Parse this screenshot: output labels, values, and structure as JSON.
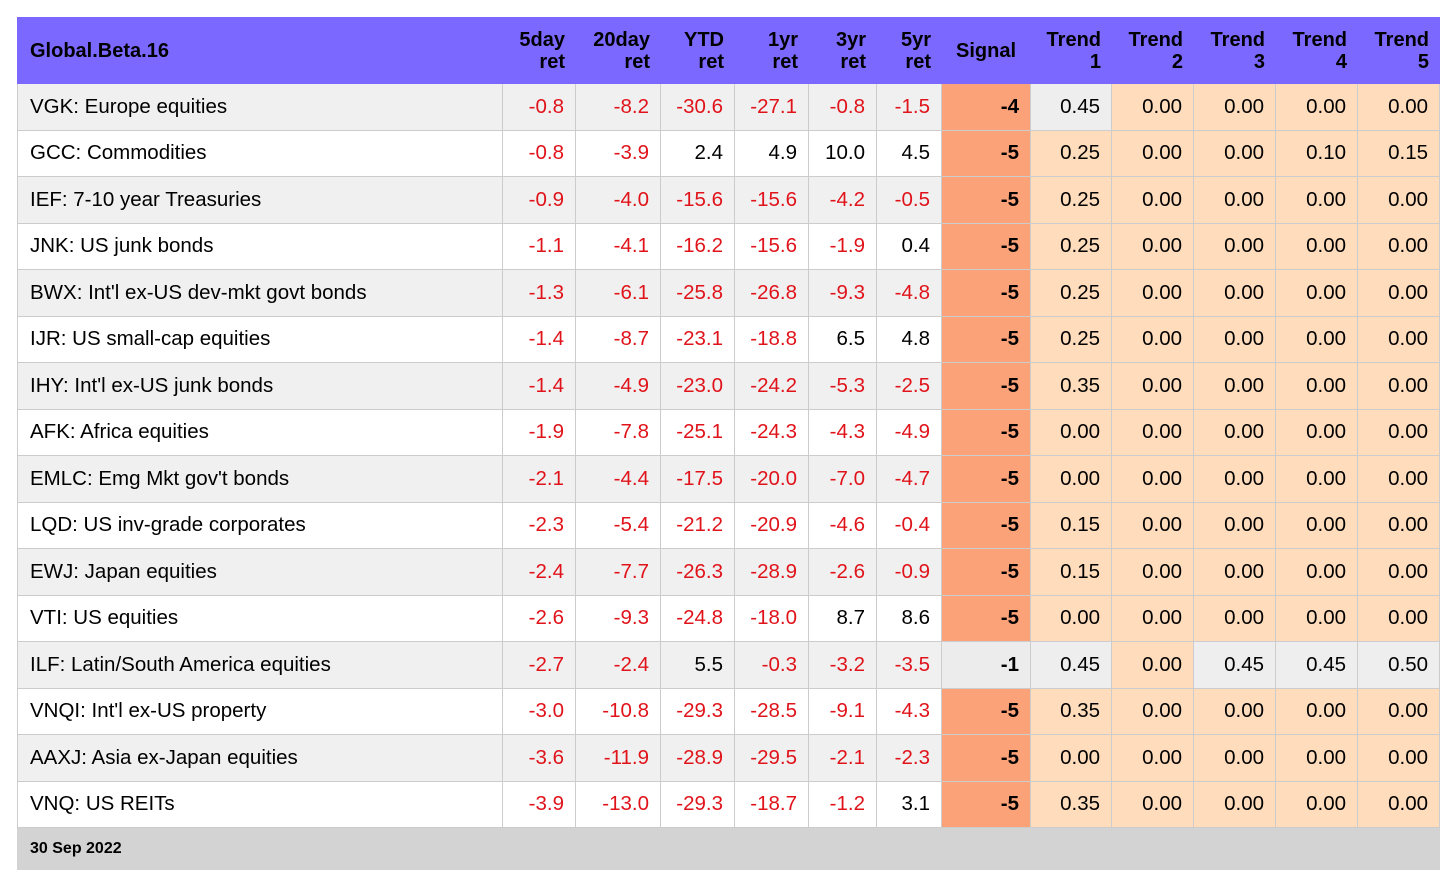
{
  "table": {
    "title": "Global.Beta.16",
    "headers": [
      {
        "line1": "5day",
        "line2": "ret"
      },
      {
        "line1": "20day",
        "line2": "ret"
      },
      {
        "line1": "YTD",
        "line2": "ret"
      },
      {
        "line1": "1yr",
        "line2": "ret"
      },
      {
        "line1": "3yr",
        "line2": "ret"
      },
      {
        "line1": "5yr",
        "line2": "ret"
      },
      {
        "line1": "Signal",
        "line2": ""
      },
      {
        "line1": "Trend",
        "line2": "1"
      },
      {
        "line1": "Trend",
        "line2": "2"
      },
      {
        "line1": "Trend",
        "line2": "3"
      },
      {
        "line1": "Trend",
        "line2": "4"
      },
      {
        "line1": "Trend",
        "line2": "5"
      }
    ],
    "rows": [
      {
        "name": "VGK: Europe equities",
        "ret5d": "-0.8",
        "ret20d": "-8.2",
        "ytd": "-30.6",
        "ret1y": "-27.1",
        "ret3y": "-0.8",
        "ret5y": "-1.5",
        "signal": "-4",
        "trend1": "0.45",
        "trend2": "0.00",
        "trend3": "0.00",
        "trend4": "0.00",
        "trend5": "0.00"
      },
      {
        "name": "GCC: Commodities",
        "ret5d": "-0.8",
        "ret20d": "-3.9",
        "ytd": "2.4",
        "ret1y": "4.9",
        "ret3y": "10.0",
        "ret5y": "4.5",
        "signal": "-5",
        "trend1": "0.25",
        "trend2": "0.00",
        "trend3": "0.00",
        "trend4": "0.10",
        "trend5": "0.15"
      },
      {
        "name": "IEF: 7-10 year Treasuries",
        "ret5d": "-0.9",
        "ret20d": "-4.0",
        "ytd": "-15.6",
        "ret1y": "-15.6",
        "ret3y": "-4.2",
        "ret5y": "-0.5",
        "signal": "-5",
        "trend1": "0.25",
        "trend2": "0.00",
        "trend3": "0.00",
        "trend4": "0.00",
        "trend5": "0.00"
      },
      {
        "name": "JNK: US junk bonds",
        "ret5d": "-1.1",
        "ret20d": "-4.1",
        "ytd": "-16.2",
        "ret1y": "-15.6",
        "ret3y": "-1.9",
        "ret5y": "0.4",
        "signal": "-5",
        "trend1": "0.25",
        "trend2": "0.00",
        "trend3": "0.00",
        "trend4": "0.00",
        "trend5": "0.00"
      },
      {
        "name": "BWX: Int'l ex-US dev-mkt govt bonds",
        "ret5d": "-1.3",
        "ret20d": "-6.1",
        "ytd": "-25.8",
        "ret1y": "-26.8",
        "ret3y": "-9.3",
        "ret5y": "-4.8",
        "signal": "-5",
        "trend1": "0.25",
        "trend2": "0.00",
        "trend3": "0.00",
        "trend4": "0.00",
        "trend5": "0.00"
      },
      {
        "name": "IJR: US small-cap equities",
        "ret5d": "-1.4",
        "ret20d": "-8.7",
        "ytd": "-23.1",
        "ret1y": "-18.8",
        "ret3y": "6.5",
        "ret5y": "4.8",
        "signal": "-5",
        "trend1": "0.25",
        "trend2": "0.00",
        "trend3": "0.00",
        "trend4": "0.00",
        "trend5": "0.00"
      },
      {
        "name": "IHY: Int'l ex-US junk bonds",
        "ret5d": "-1.4",
        "ret20d": "-4.9",
        "ytd": "-23.0",
        "ret1y": "-24.2",
        "ret3y": "-5.3",
        "ret5y": "-2.5",
        "signal": "-5",
        "trend1": "0.35",
        "trend2": "0.00",
        "trend3": "0.00",
        "trend4": "0.00",
        "trend5": "0.00"
      },
      {
        "name": "AFK: Africa equities",
        "ret5d": "-1.9",
        "ret20d": "-7.8",
        "ytd": "-25.1",
        "ret1y": "-24.3",
        "ret3y": "-4.3",
        "ret5y": "-4.9",
        "signal": "-5",
        "trend1": "0.00",
        "trend2": "0.00",
        "trend3": "0.00",
        "trend4": "0.00",
        "trend5": "0.00"
      },
      {
        "name": "EMLC: Emg Mkt gov't bonds",
        "ret5d": "-2.1",
        "ret20d": "-4.4",
        "ytd": "-17.5",
        "ret1y": "-20.0",
        "ret3y": "-7.0",
        "ret5y": "-4.7",
        "signal": "-5",
        "trend1": "0.00",
        "trend2": "0.00",
        "trend3": "0.00",
        "trend4": "0.00",
        "trend5": "0.00"
      },
      {
        "name": "LQD: US inv-grade corporates",
        "ret5d": "-2.3",
        "ret20d": "-5.4",
        "ytd": "-21.2",
        "ret1y": "-20.9",
        "ret3y": "-4.6",
        "ret5y": "-0.4",
        "signal": "-5",
        "trend1": "0.15",
        "trend2": "0.00",
        "trend3": "0.00",
        "trend4": "0.00",
        "trend5": "0.00"
      },
      {
        "name": "EWJ: Japan equities",
        "ret5d": "-2.4",
        "ret20d": "-7.7",
        "ytd": "-26.3",
        "ret1y": "-28.9",
        "ret3y": "-2.6",
        "ret5y": "-0.9",
        "signal": "-5",
        "trend1": "0.15",
        "trend2": "0.00",
        "trend3": "0.00",
        "trend4": "0.00",
        "trend5": "0.00"
      },
      {
        "name": "VTI: US equities",
        "ret5d": "-2.6",
        "ret20d": "-9.3",
        "ytd": "-24.8",
        "ret1y": "-18.0",
        "ret3y": "8.7",
        "ret5y": "8.6",
        "signal": "-5",
        "trend1": "0.00",
        "trend2": "0.00",
        "trend3": "0.00",
        "trend4": "0.00",
        "trend5": "0.00"
      },
      {
        "name": "ILF: Latin/South America equities",
        "ret5d": "-2.7",
        "ret20d": "-2.4",
        "ytd": "5.5",
        "ret1y": "-0.3",
        "ret3y": "-3.2",
        "ret5y": "-3.5",
        "signal": "-1",
        "trend1": "0.45",
        "trend2": "0.00",
        "trend3": "0.45",
        "trend4": "0.45",
        "trend5": "0.50"
      },
      {
        "name": "VNQI: Int'l ex-US property",
        "ret5d": "-3.0",
        "ret20d": "-10.8",
        "ytd": "-29.3",
        "ret1y": "-28.5",
        "ret3y": "-9.1",
        "ret5y": "-4.3",
        "signal": "-5",
        "trend1": "0.35",
        "trend2": "0.00",
        "trend3": "0.00",
        "trend4": "0.00",
        "trend5": "0.00"
      },
      {
        "name": "AAXJ: Asia ex-Japan equities",
        "ret5d": "-3.6",
        "ret20d": "-11.9",
        "ytd": "-28.9",
        "ret1y": "-29.5",
        "ret3y": "-2.1",
        "ret5y": "-2.3",
        "signal": "-5",
        "trend1": "0.00",
        "trend2": "0.00",
        "trend3": "0.00",
        "trend4": "0.00",
        "trend5": "0.00"
      },
      {
        "name": "VNQ: US REITs",
        "ret5d": "-3.9",
        "ret20d": "-13.0",
        "ytd": "-29.3",
        "ret1y": "-18.7",
        "ret3y": "-1.2",
        "ret5y": "3.1",
        "signal": "-5",
        "trend1": "0.35",
        "trend2": "0.00",
        "trend3": "0.00",
        "trend4": "0.00",
        "trend5": "0.00"
      }
    ],
    "footer": "30 Sep 2022"
  },
  "colors": {
    "header_bg": "#7b68ff",
    "negative_text": "#e0131a",
    "signal_negative_bg": "#fca279",
    "signal_neutral_bg": "#ececec",
    "trend_zero_bg": "#ffdcbb",
    "trend_positive_bg": "#eeeeee",
    "footer_bg": "#d3d3d3",
    "row_alt_bg": "#f0f0f0"
  }
}
